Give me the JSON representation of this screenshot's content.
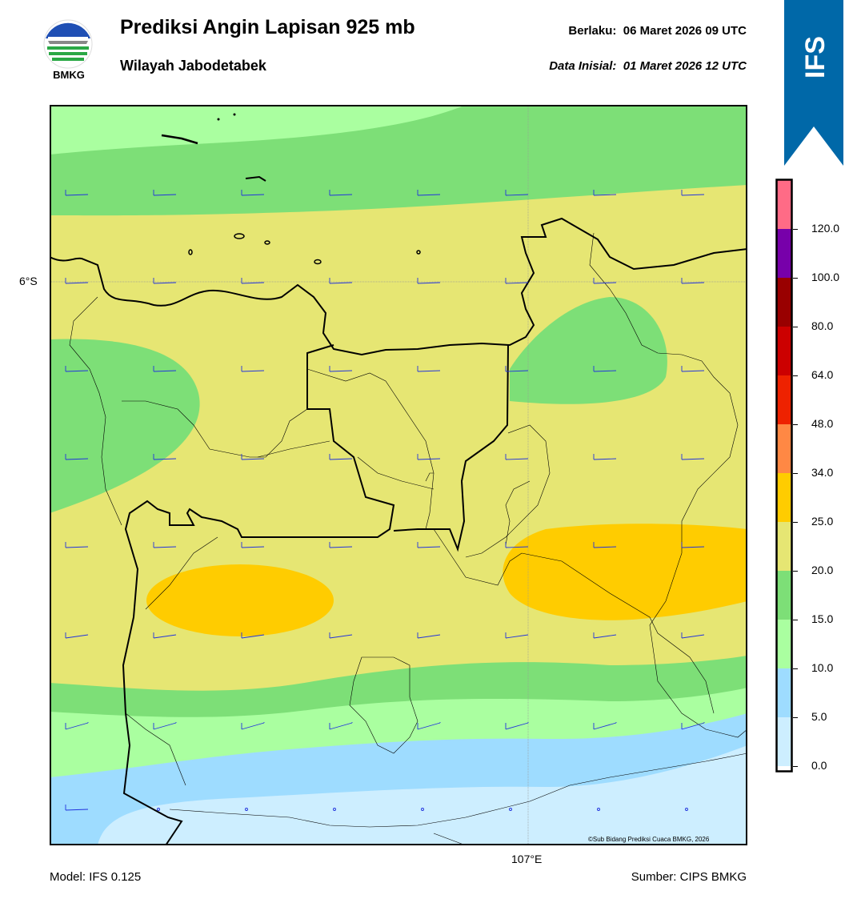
{
  "header": {
    "logo_text": "BMKG",
    "title": "Prediksi Angin Lapisan 925 mb",
    "subtitle": "Wilayah Jabodetabek",
    "valid_label": "Berlaku:",
    "valid_value": "06 Maret 2026 09 UTC",
    "init_label": "Data Inisial:",
    "init_value": "01 Maret 2026 12 UTC",
    "banner_text": "IFS"
  },
  "map": {
    "lat_label": "6°S",
    "lon_label": "107°E",
    "copyright": "©Sub Bidang Prediksi Cuaca BMKG, 2026"
  },
  "footer": {
    "model": "Model: IFS 0.125",
    "source": "Sumber: CIPS BMKG"
  },
  "colorbar": {
    "labels": [
      "120.0",
      "100.0",
      "80.0",
      "64.0",
      "48.0",
      "34.0",
      "25.0",
      "20.0",
      "15.0",
      "10.0",
      "5.0",
      "0.0"
    ],
    "colors": [
      "#ff6b86",
      "#7700aa",
      "#990000",
      "#cc0000",
      "#ee2200",
      "#ff8844",
      "#ffcc00",
      "#e6e673",
      "#7ddf77",
      "#aaffa0",
      "#9edcff",
      "#cdeeff",
      "#ffffff"
    ]
  },
  "colors": {
    "banner": "#0068a8",
    "barb": "#2233dd"
  }
}
